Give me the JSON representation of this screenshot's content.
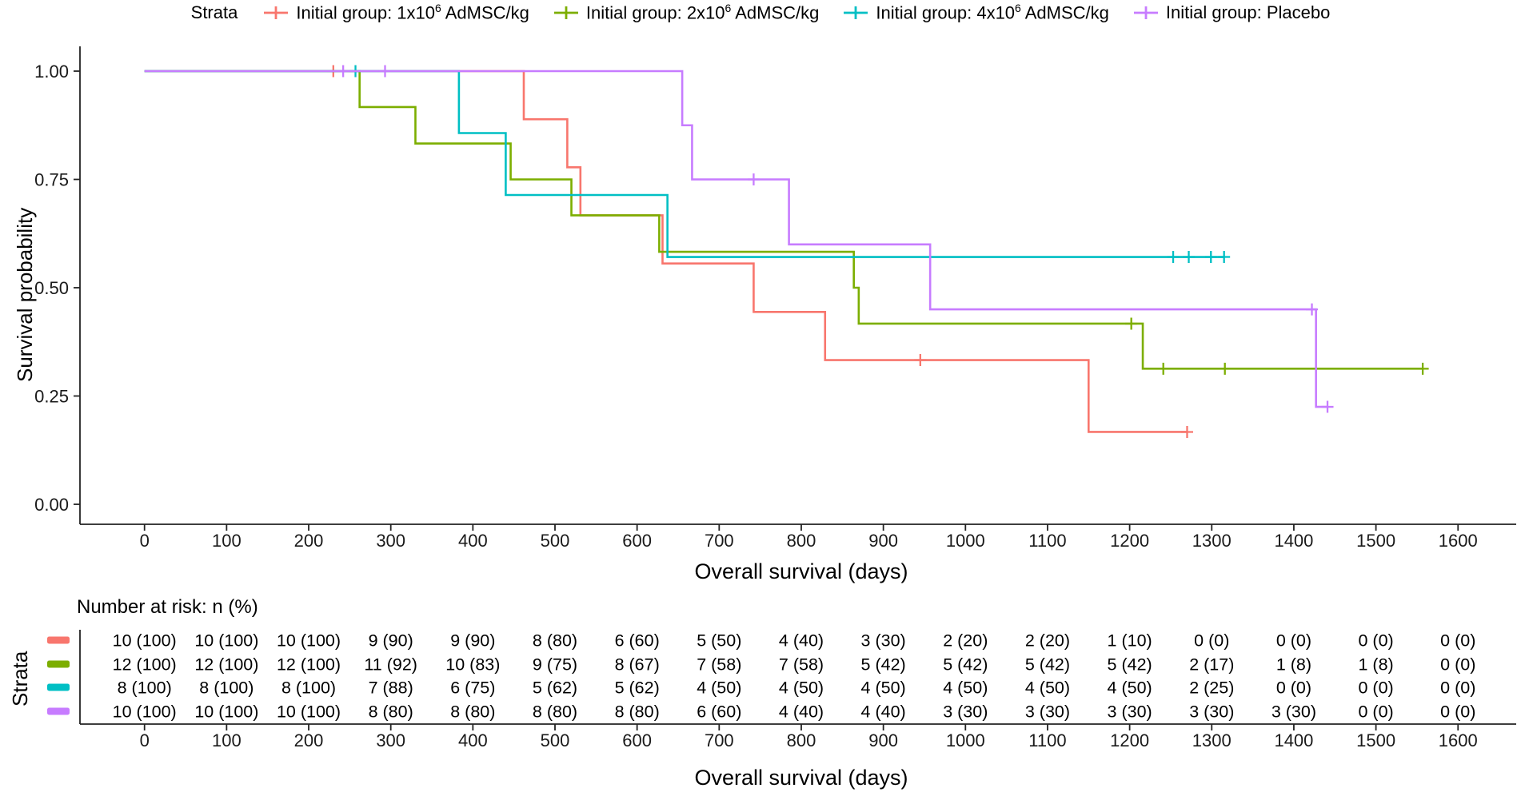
{
  "legend": {
    "title": "Strata",
    "items": [
      {
        "id": "1x106",
        "color": "#F8766D",
        "prefix": "Initial group: 1x10",
        "sup": "6",
        "suffix": " AdMSC/kg"
      },
      {
        "id": "2x106",
        "color": "#7CAE00",
        "prefix": "Initial group: 2x10",
        "sup": "6",
        "suffix": " AdMSC/kg"
      },
      {
        "id": "4x106",
        "color": "#00BFC4",
        "prefix": "Initial group: 4x10",
        "sup": "6",
        "suffix": " AdMSC/kg"
      },
      {
        "id": "placebo",
        "color": "#C77CFF",
        "prefix": "Initial group: Placebo",
        "sup": "",
        "suffix": ""
      }
    ]
  },
  "chart": {
    "ylabel": "Survival probability",
    "xlabel": "Overall survival (days)"
  },
  "chart_data": {
    "type": "line",
    "subtype": "kaplan-meier-step",
    "title": "",
    "xlabel": "Overall survival (days)",
    "ylabel": "Survival probability",
    "xlim": [
      0,
      1600
    ],
    "ylim": [
      0,
      1
    ],
    "grid": false,
    "legend_position": "top",
    "x_ticks": [
      0,
      100,
      200,
      300,
      400,
      500,
      600,
      700,
      800,
      900,
      1000,
      1100,
      1200,
      1300,
      1400,
      1500,
      1600
    ],
    "y_ticks": [
      {
        "v": 0.0,
        "label": "0.00"
      },
      {
        "v": 0.25,
        "label": "0.25"
      },
      {
        "v": 0.5,
        "label": "0.50"
      },
      {
        "v": 0.75,
        "label": "0.75"
      },
      {
        "v": 1.0,
        "label": "1.00"
      }
    ],
    "series": [
      {
        "id": "1x106",
        "name": "Initial group: 1x10⁶ AdMSC/kg",
        "color": "#F8766D",
        "steps": [
          [
            0,
            1
          ],
          [
            462,
            0.889
          ],
          [
            515,
            0.778
          ],
          [
            531,
            0.667
          ],
          [
            631,
            0.556
          ],
          [
            742,
            0.444
          ],
          [
            829,
            0.333
          ],
          [
            1150,
            0.167
          ]
        ],
        "end": 1270,
        "censors": [
          [
            230,
            1
          ],
          [
            945,
            0.333
          ],
          [
            1270,
            0.167
          ]
        ]
      },
      {
        "id": "2x106",
        "name": "Initial group: 2x10⁶ AdMSC/kg",
        "color": "#7CAE00",
        "steps": [
          [
            0,
            1
          ],
          [
            262,
            0.917
          ],
          [
            330,
            0.833
          ],
          [
            446,
            0.75
          ],
          [
            520,
            0.667
          ],
          [
            627,
            0.583
          ],
          [
            864,
            0.5
          ],
          [
            870,
            0.417
          ],
          [
            1216,
            0.313
          ]
        ],
        "end": 1557,
        "censors": [
          [
            1202,
            0.417
          ],
          [
            1241,
            0.313
          ],
          [
            1316,
            0.313
          ],
          [
            1557,
            0.313
          ]
        ]
      },
      {
        "id": "4x106",
        "name": "Initial group: 4x10⁶ AdMSC/kg",
        "color": "#00BFC4",
        "steps": [
          [
            0,
            1
          ],
          [
            383,
            0.857
          ],
          [
            440,
            0.714
          ],
          [
            637,
            0.571
          ]
        ],
        "end": 1315,
        "censors": [
          [
            257,
            1
          ],
          [
            1253,
            0.571
          ],
          [
            1272,
            0.571
          ],
          [
            1299,
            0.571
          ],
          [
            1315,
            0.571
          ]
        ]
      },
      {
        "id": "placebo",
        "name": "Initial group: Placebo",
        "color": "#C77CFF",
        "steps": [
          [
            0,
            1
          ],
          [
            655,
            0.875
          ],
          [
            667,
            0.75
          ],
          [
            785,
            0.6
          ],
          [
            957,
            0.45
          ],
          [
            1427,
            0.225
          ]
        ],
        "end": 1441,
        "censors": [
          [
            242,
            1
          ],
          [
            293,
            1
          ],
          [
            742,
            0.75
          ],
          [
            1422,
            0.45
          ],
          [
            1441,
            0.225
          ]
        ]
      }
    ]
  },
  "risk_table": {
    "title": "Number at risk: n (%)",
    "ylabel": "Strata",
    "xlabel": "Overall survival (days)",
    "times": [
      0,
      100,
      200,
      300,
      400,
      500,
      600,
      700,
      800,
      900,
      1000,
      1100,
      1200,
      1300,
      1400,
      1500,
      1600
    ],
    "rows": [
      {
        "id": "1x106",
        "color": "#F8766D",
        "values": [
          "10 (100)",
          "10 (100)",
          "10 (100)",
          "9 (90)",
          "9 (90)",
          "8 (80)",
          "6 (60)",
          "5 (50)",
          "4 (40)",
          "3 (30)",
          "2 (20)",
          "2 (20)",
          "1 (10)",
          "0 (0)",
          "0 (0)",
          "0 (0)",
          "0 (0)"
        ]
      },
      {
        "id": "2x106",
        "color": "#7CAE00",
        "values": [
          "12 (100)",
          "12 (100)",
          "12 (100)",
          "11 (92)",
          "10 (83)",
          "9 (75)",
          "8 (67)",
          "7 (58)",
          "7 (58)",
          "5 (42)",
          "5 (42)",
          "5 (42)",
          "5 (42)",
          "2 (17)",
          "1 (8)",
          "1 (8)",
          "0 (0)"
        ]
      },
      {
        "id": "4x106",
        "color": "#00BFC4",
        "values": [
          "8 (100)",
          "8 (100)",
          "8 (100)",
          "7 (88)",
          "6 (75)",
          "5 (62)",
          "5 (62)",
          "4 (50)",
          "4 (50)",
          "4 (50)",
          "4 (50)",
          "4 (50)",
          "4 (50)",
          "2 (25)",
          "0 (0)",
          "0 (0)",
          "0 (0)"
        ]
      },
      {
        "id": "placebo",
        "color": "#C77CFF",
        "values": [
          "10 (100)",
          "10 (100)",
          "10 (100)",
          "8 (80)",
          "8 (80)",
          "8 (80)",
          "8 (80)",
          "6 (60)",
          "4 (40)",
          "4 (40)",
          "3 (30)",
          "3 (30)",
          "3 (30)",
          "3 (30)",
          "3 (30)",
          "0 (0)",
          "0 (0)"
        ]
      }
    ]
  }
}
